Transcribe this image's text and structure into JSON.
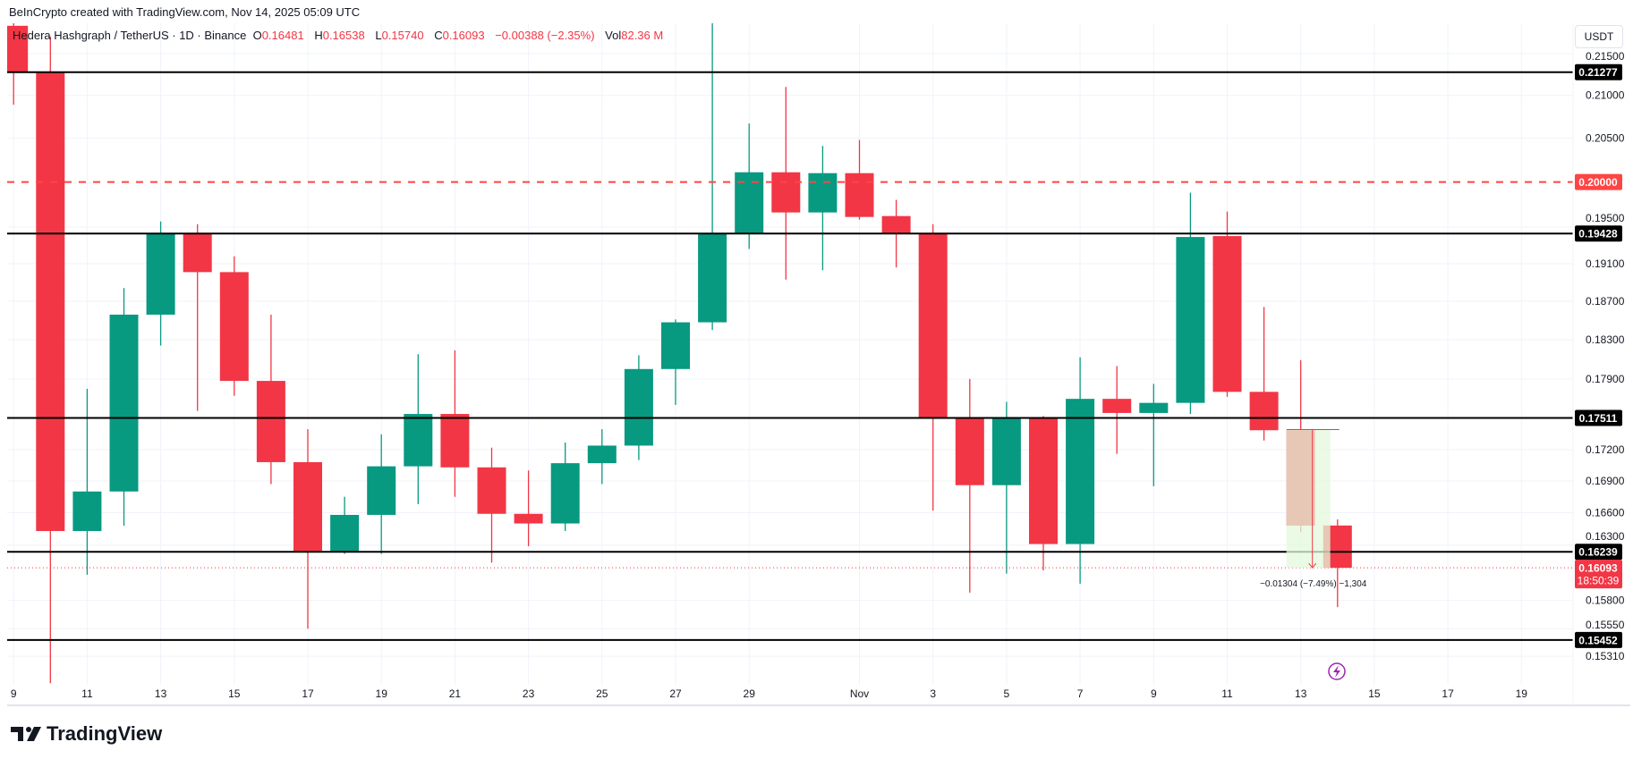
{
  "credit": "BeInCrypto created with TradingView.com, Nov 14, 2025 05:09 UTC",
  "legend": {
    "symbol": "Hedera Hashgraph / TetherUS · 1D · Binance",
    "o_label": "O",
    "o": "0.16481",
    "h_label": "H",
    "h": "0.16538",
    "l_label": "L",
    "l": "0.15740",
    "c_label": "C",
    "c": "0.16093",
    "change": "−0.00388 (−2.35%)",
    "vol_label": "Vol",
    "vol": "82.36 M"
  },
  "currency_button": "USDT",
  "brand": "TradingView",
  "colors": {
    "up": "#089981",
    "down": "#F23645",
    "level": "#000000",
    "target": "#FF4444",
    "measure_fill": "#E3F8DB"
  },
  "chart_data": {
    "type": "candlestick",
    "title": "Hedera Hashgraph / TetherUS · 1D · Binance",
    "y_scale": "log",
    "ylim": [
      0.15,
      0.219
    ],
    "grid": true,
    "x_tick_labels": [
      "9",
      "11",
      "13",
      "15",
      "17",
      "19",
      "21",
      "23",
      "25",
      "27",
      "29",
      "Nov",
      "3",
      "5",
      "7",
      "9",
      "11",
      "13",
      "15",
      "17",
      "19"
    ],
    "y_tick_labels": [
      "0.21500",
      "0.21000",
      "0.20500",
      "0.19500",
      "0.19100",
      "0.18700",
      "0.18300",
      "0.17900",
      "0.17200",
      "0.16900",
      "0.16600",
      "0.16300",
      "0.15800",
      "0.15550",
      "0.15310"
    ],
    "candles": [
      {
        "date": "Oct 9",
        "o": 0.2184,
        "h": 0.2195,
        "l": 0.2089,
        "c": 0.2128
      },
      {
        "date": "Oct 10",
        "o": 0.2128,
        "h": 0.2171,
        "l": 0.1508,
        "c": 0.1643
      },
      {
        "date": "Oct 11",
        "o": 0.1643,
        "h": 0.178,
        "l": 0.1603,
        "c": 0.168
      },
      {
        "date": "Oct 12",
        "o": 0.168,
        "h": 0.1884,
        "l": 0.1648,
        "c": 0.1856
      },
      {
        "date": "Oct 13",
        "o": 0.1856,
        "h": 0.1956,
        "l": 0.1824,
        "c": 0.1943
      },
      {
        "date": "Oct 14",
        "o": 0.1943,
        "h": 0.1953,
        "l": 0.1758,
        "c": 0.1901
      },
      {
        "date": "Oct 15",
        "o": 0.1901,
        "h": 0.1918,
        "l": 0.1773,
        "c": 0.1788
      },
      {
        "date": "Oct 16",
        "o": 0.1788,
        "h": 0.1856,
        "l": 0.1687,
        "c": 0.1708
      },
      {
        "date": "Oct 17",
        "o": 0.1708,
        "h": 0.174,
        "l": 0.1555,
        "c": 0.1624
      },
      {
        "date": "Oct 18",
        "o": 0.1624,
        "h": 0.1675,
        "l": 0.1622,
        "c": 0.1658
      },
      {
        "date": "Oct 19",
        "o": 0.1658,
        "h": 0.1735,
        "l": 0.1622,
        "c": 0.1704
      },
      {
        "date": "Oct 20",
        "o": 0.1704,
        "h": 0.1815,
        "l": 0.1668,
        "c": 0.1755
      },
      {
        "date": "Oct 21",
        "o": 0.1755,
        "h": 0.1819,
        "l": 0.1675,
        "c": 0.1703
      },
      {
        "date": "Oct 22",
        "o": 0.1703,
        "h": 0.1722,
        "l": 0.1614,
        "c": 0.1659
      },
      {
        "date": "Oct 23",
        "o": 0.1659,
        "h": 0.17,
        "l": 0.1629,
        "c": 0.165
      },
      {
        "date": "Oct 24",
        "o": 0.165,
        "h": 0.1727,
        "l": 0.1643,
        "c": 0.1707
      },
      {
        "date": "Oct 25",
        "o": 0.1707,
        "h": 0.174,
        "l": 0.1687,
        "c": 0.1724
      },
      {
        "date": "Oct 26",
        "o": 0.1724,
        "h": 0.1814,
        "l": 0.171,
        "c": 0.18
      },
      {
        "date": "Oct 27",
        "o": 0.18,
        "h": 0.1851,
        "l": 0.1764,
        "c": 0.1848
      },
      {
        "date": "Oct 28",
        "o": 0.1848,
        "h": 0.219,
        "l": 0.184,
        "c": 0.1943
      },
      {
        "date": "Oct 29",
        "o": 0.1943,
        "h": 0.2067,
        "l": 0.1926,
        "c": 0.2011
      },
      {
        "date": "Oct 30",
        "o": 0.2011,
        "h": 0.211,
        "l": 0.1893,
        "c": 0.1966
      },
      {
        "date": "Oct 31",
        "o": 0.1966,
        "h": 0.2041,
        "l": 0.1903,
        "c": 0.201
      },
      {
        "date": "Nov 1",
        "o": 0.201,
        "h": 0.2048,
        "l": 0.1958,
        "c": 0.1961
      },
      {
        "date": "Nov 2",
        "o": 0.1962,
        "h": 0.198,
        "l": 0.1906,
        "c": 0.1943
      },
      {
        "date": "Nov 3",
        "o": 0.1943,
        "h": 0.1953,
        "l": 0.1662,
        "c": 0.1751
      },
      {
        "date": "Nov 4",
        "o": 0.1751,
        "h": 0.179,
        "l": 0.1587,
        "c": 0.1686
      },
      {
        "date": "Nov 5",
        "o": 0.1686,
        "h": 0.1767,
        "l": 0.1604,
        "c": 0.1751
      },
      {
        "date": "Nov 6",
        "o": 0.1751,
        "h": 0.1753,
        "l": 0.1607,
        "c": 0.1631
      },
      {
        "date": "Nov 7",
        "o": 0.1631,
        "h": 0.1812,
        "l": 0.1595,
        "c": 0.177
      },
      {
        "date": "Nov 8",
        "o": 0.177,
        "h": 0.1803,
        "l": 0.1716,
        "c": 0.1756
      },
      {
        "date": "Nov 9",
        "o": 0.1756,
        "h": 0.1785,
        "l": 0.1685,
        "c": 0.1766
      },
      {
        "date": "Nov 10",
        "o": 0.1766,
        "h": 0.1988,
        "l": 0.1755,
        "c": 0.1939
      },
      {
        "date": "Nov 11",
        "o": 0.194,
        "h": 0.1967,
        "l": 0.1772,
        "c": 0.1777
      },
      {
        "date": "Nov 12",
        "o": 0.1777,
        "h": 0.1864,
        "l": 0.1729,
        "c": 0.1739
      },
      {
        "date": "Nov 13",
        "o": 0.1739,
        "h": 0.1809,
        "l": 0.1642,
        "c": 0.1648
      },
      {
        "date": "Nov 14",
        "o": 0.16481,
        "h": 0.16538,
        "l": 0.1574,
        "c": 0.16093
      }
    ],
    "levels": [
      {
        "price": 0.21277,
        "label": "0.21277",
        "style": "solid"
      },
      {
        "price": 0.2,
        "label": "0.20000",
        "style": "dashed-red"
      },
      {
        "price": 0.19428,
        "label": "0.19428",
        "style": "solid"
      },
      {
        "price": 0.17511,
        "label": "0.17511",
        "style": "solid"
      },
      {
        "price": 0.16239,
        "label": "0.16239",
        "style": "solid"
      },
      {
        "price": 0.15452,
        "label": "0.15452",
        "style": "solid"
      }
    ],
    "last_price": {
      "label": "0.16093",
      "countdown": "18:50:39",
      "price": 0.16093
    },
    "measure": {
      "from_date": "Nov 13",
      "to_date": "Nov 14",
      "from_price": 0.17397,
      "to_price": 0.16093,
      "label": "−0.01304 (−7.49%) −1,304"
    }
  }
}
